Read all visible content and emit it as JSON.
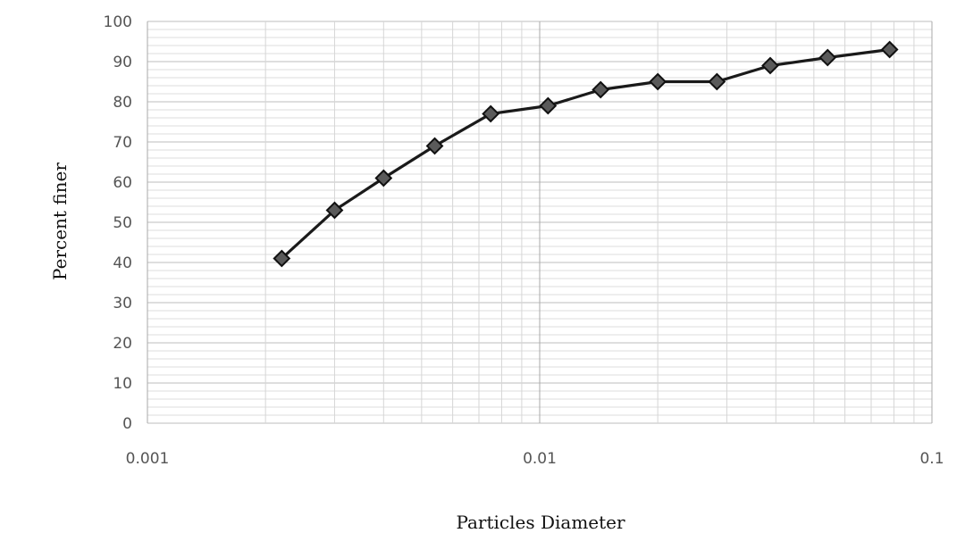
{
  "chart_data": {
    "type": "line",
    "xlabel": "Particles Diameter",
    "ylabel": "Percent finer",
    "x_scale": "log",
    "xlim": [
      0.001,
      0.1
    ],
    "ylim": [
      0,
      100
    ],
    "x_ticks": [
      "0.001",
      "0.01",
      "0.1"
    ],
    "y_ticks": [
      "0",
      "10",
      "20",
      "30",
      "40",
      "50",
      "60",
      "70",
      "80",
      "90",
      "100"
    ],
    "grid": true,
    "marker": "diamond",
    "series": [
      {
        "color": "#1a1a1a",
        "marker_color": "#5a5a5a",
        "x": [
          0.0022,
          0.003,
          0.004,
          0.0054,
          0.0075,
          0.0105,
          0.0143,
          0.02,
          0.0283,
          0.0387,
          0.0542,
          0.078
        ],
        "y": [
          41,
          53,
          61,
          69,
          77,
          79,
          83,
          85,
          85,
          89,
          91,
          93
        ]
      }
    ]
  }
}
